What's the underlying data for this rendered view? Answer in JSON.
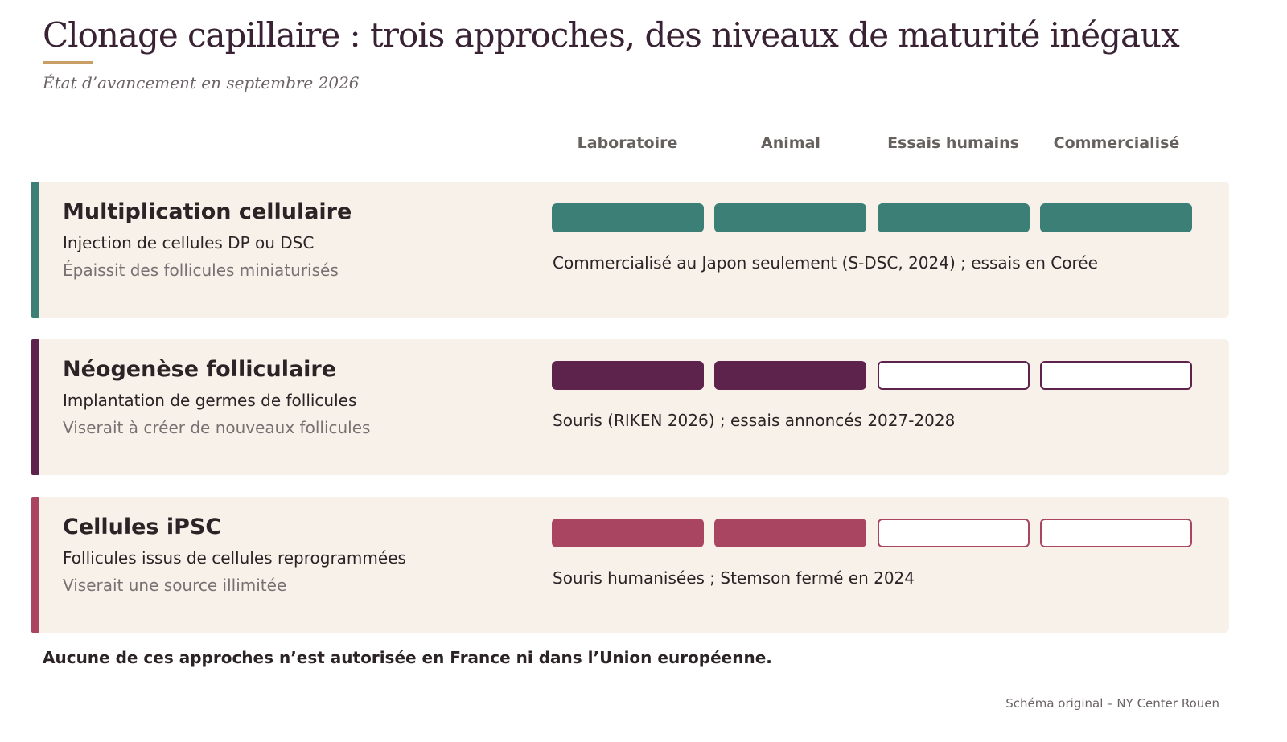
{
  "title": "Clonage capillaire : trois approches, des niveaux de maturité inégaux",
  "subtitle": "État d’avancement en septembre 2026",
  "stages": [
    "Laboratoire",
    "Animal",
    "Essais humains",
    "Commercialisé"
  ],
  "approaches": [
    {
      "title": "Multiplication cellulaire",
      "description": "Injection de cellules DP ou DSC",
      "note": "Épaissit des follicules miniaturisés",
      "status": "Commercialisé au Japon seulement (S-DSC, 2024) ; essais en Corée",
      "stages_reached": 4,
      "color": "#3b7f77"
    },
    {
      "title": "Néogenèse folliculaire",
      "description": "Implantation de germes de follicules",
      "note": "Viserait à créer de nouveaux follicules",
      "status": "Souris (RIKEN 2026) ; essais annoncés 2027-2028",
      "stages_reached": 2,
      "color": "#5e234d"
    },
    {
      "title": "Cellules iPSC",
      "description": "Follicules issus de cellules reprogrammées",
      "note": "Viserait une source illimitée",
      "status": "Souris humanisées ; Stemson fermé en 2024",
      "stages_reached": 2,
      "color": "#a94561"
    }
  ],
  "footnote": "Aucune de ces approches n’est autorisée en France ni dans l’Union européenne.",
  "credit": "Schéma original – NY Center Rouen",
  "colors": {
    "title_accent": "#c8a066",
    "card_background": "#f7f1e9"
  }
}
